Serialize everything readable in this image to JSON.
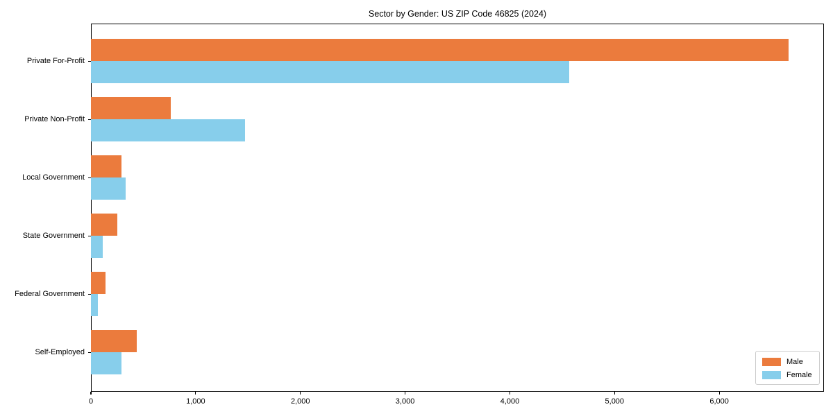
{
  "chart_data": {
    "type": "bar",
    "orientation": "horizontal",
    "title": "Sector by Gender: US ZIP Code 46825 (2024)",
    "categories": [
      "Private For-Profit",
      "Private Non-Profit",
      "Local Government",
      "State Government",
      "Federal Government",
      "Self-Employed"
    ],
    "series": [
      {
        "name": "Male",
        "color": "#eb7b3d",
        "values": [
          6660,
          760,
          290,
          250,
          140,
          440
        ]
      },
      {
        "name": "Female",
        "color": "#87ceeb",
        "values": [
          4570,
          1470,
          330,
          110,
          65,
          290
        ]
      }
    ],
    "xlim": [
      0,
      7000
    ],
    "x_ticks": [
      0,
      1000,
      2000,
      3000,
      4000,
      5000,
      6000
    ],
    "x_tick_labels": [
      "0",
      "1,000",
      "2,000",
      "3,000",
      "4,000",
      "5,000",
      "6,000"
    ],
    "grid": false,
    "legend": {
      "position": "lower right"
    },
    "axis_color": "#000000",
    "background_color": "#ffffff"
  }
}
